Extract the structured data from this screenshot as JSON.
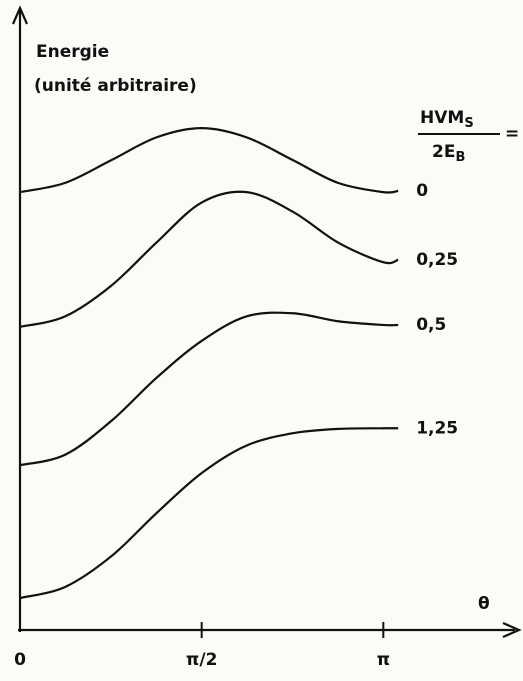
{
  "chart_data": {
    "type": "line",
    "y_label": [
      "Energie",
      "(unité arbitraire)"
    ],
    "x_label": "θ",
    "legend_title": {
      "numerator": "HVM",
      "numerator_sub": "S",
      "denominator": "2E",
      "denominator_sub": "B",
      "suffix": "="
    },
    "x": [
      0,
      0.39,
      0.79,
      1.18,
      1.57,
      1.96,
      2.36,
      2.75,
      3.14,
      3.27
    ],
    "series": [
      {
        "name": "0",
        "color": "#111111",
        "values": [
          7.12,
          7.27,
          7.64,
          8.01,
          8.16,
          8.01,
          7.64,
          7.27,
          7.12,
          7.14
        ]
      },
      {
        "name": "0,25",
        "color": "#111111",
        "values": [
          4.93,
          5.1,
          5.6,
          6.3,
          6.95,
          7.12,
          6.8,
          6.3,
          5.98,
          6.02
        ]
      },
      {
        "name": "0,5",
        "color": "#111111",
        "values": [
          2.68,
          2.85,
          3.4,
          4.1,
          4.7,
          5.1,
          5.15,
          5.02,
          4.96,
          4.96
        ]
      },
      {
        "name": "1,25",
        "color": "#111111",
        "values": [
          0.52,
          0.7,
          1.2,
          1.9,
          2.55,
          3.0,
          3.2,
          3.27,
          3.28,
          3.28
        ]
      }
    ],
    "xlim": [
      0,
      4.28
    ],
    "ylim": [
      0,
      10
    ],
    "xticks": [
      0,
      {
        "value": 1.5708,
        "label": "π/2"
      },
      {
        "value": 3.1416,
        "label": "π"
      }
    ]
  }
}
